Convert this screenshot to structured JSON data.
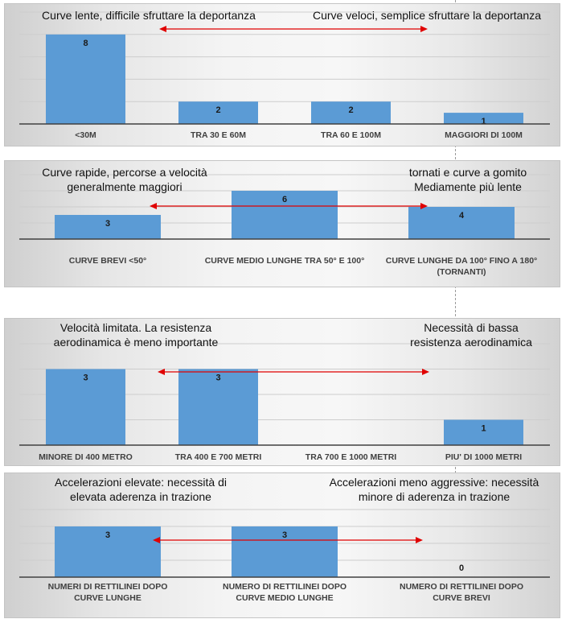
{
  "colors": {
    "bar": "#5b9bd5",
    "grid": "#cdcdcd",
    "axis": "#404040",
    "arrow": "#e00000"
  },
  "panels": [
    {
      "annotations": [
        "Curve lente, difficile sfruttare la deportanza",
        "Curve veloci, semplice sfruttare la deportanza"
      ]
    },
    {
      "annotations": [
        "Curve rapide, percorse a velocità\ngeneralmente maggiori",
        "tornati e curve a gomito\nMediamente più lente"
      ]
    },
    {
      "annotations": [
        "Velocità limitata. La resistenza\naerodinamica è meno importante",
        "Necessità di bassa\nresistenza aerodinamica"
      ]
    },
    {
      "annotations": [
        "Accelerazioni elevate: necessità di\nelevata aderenza in trazione",
        "Accelerazioni meno aggressive: necessità\nminore di aderenza in trazione"
      ]
    }
  ],
  "chart_data": [
    {
      "type": "bar",
      "categories": [
        "<30M",
        "TRA 30 E 60M",
        "TRA 60 E 100M",
        "MAGGIORI DI 100M"
      ],
      "values": [
        8,
        2,
        2,
        1
      ],
      "ylim": [
        0,
        10
      ],
      "grid": true,
      "data_labels": true
    },
    {
      "type": "bar",
      "categories": [
        "CURVE BREVI <50°",
        "CURVE MEDIO LUNGHE TRA 50° E 100°",
        "CURVE LUNGHE DA 100° FINO A 180° (TORNANTI)"
      ],
      "values": [
        3,
        6,
        4
      ],
      "ylim": [
        0,
        8
      ],
      "grid": true,
      "data_labels": true
    },
    {
      "type": "bar",
      "categories": [
        "MINORE DI 400 METRO",
        "TRA 400  E 700 METRI",
        "TRA 700 E 1000 METRI",
        "PIU' DI 1000 METRI"
      ],
      "values": [
        3,
        3,
        null,
        1
      ],
      "ylim": [
        0,
        4
      ],
      "grid": true,
      "data_labels": true
    },
    {
      "type": "bar",
      "categories": [
        "NUMERI DI RETTILINEI DOPO CURVE LUNGHE",
        "NUMERO DI RETTILINEI DOPO CURVE MEDIO LUNGHE",
        "NUMERO DI RETTILINEI DOPO CURVE BREVI"
      ],
      "values": [
        3,
        3,
        0
      ],
      "ylim": [
        0,
        4
      ],
      "grid": true,
      "data_labels": true
    }
  ]
}
